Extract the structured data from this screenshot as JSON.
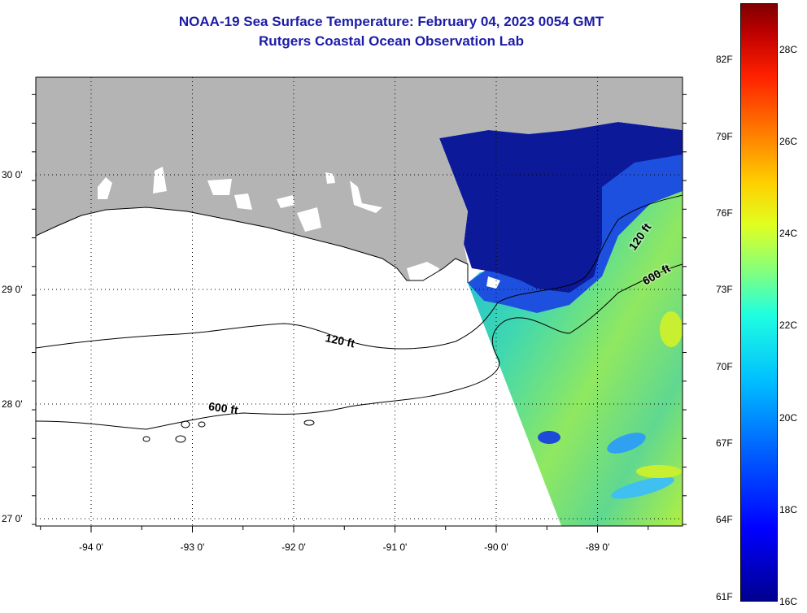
{
  "title": {
    "line1": "NOAA-19 Sea Surface Temperature:  February 04, 2023 0054 GMT",
    "line2": "Rutgers Coastal Ocean Observation Lab"
  },
  "map": {
    "lon_labels": [
      "-94 0'",
      "-93 0'",
      "-92 0'",
      "-91 0'",
      "-90 0'",
      "-89 0'"
    ],
    "lat_labels": [
      "30 0'",
      "29 0'",
      "28 0'",
      "27 0'"
    ],
    "contour_labels": [
      {
        "text": "120 ft",
        "lon": -91.55,
        "lat": 28.52,
        "angle": 12
      },
      {
        "text": "600 ft",
        "lon": -92.7,
        "lat": 27.93,
        "angle": 8
      },
      {
        "text": "120 ft",
        "lon": -88.55,
        "lat": 29.44,
        "angle": -55
      },
      {
        "text": "600 ft",
        "lon": -88.4,
        "lat": 29.1,
        "angle": -30
      }
    ],
    "colors": {
      "land": "#b4b4b4",
      "ocean_no_data": "#ffffff",
      "gridline": "#000000",
      "contour": "#000000"
    }
  },
  "colorbar": {
    "min_c": 16,
    "max_c": 29,
    "labels_f": [
      "82F",
      "79F",
      "76F",
      "73F",
      "70F",
      "67F",
      "64F",
      "61F"
    ],
    "labels_c": [
      "28C",
      "26C",
      "24C",
      "22C",
      "20C",
      "18C",
      "16C"
    ]
  }
}
